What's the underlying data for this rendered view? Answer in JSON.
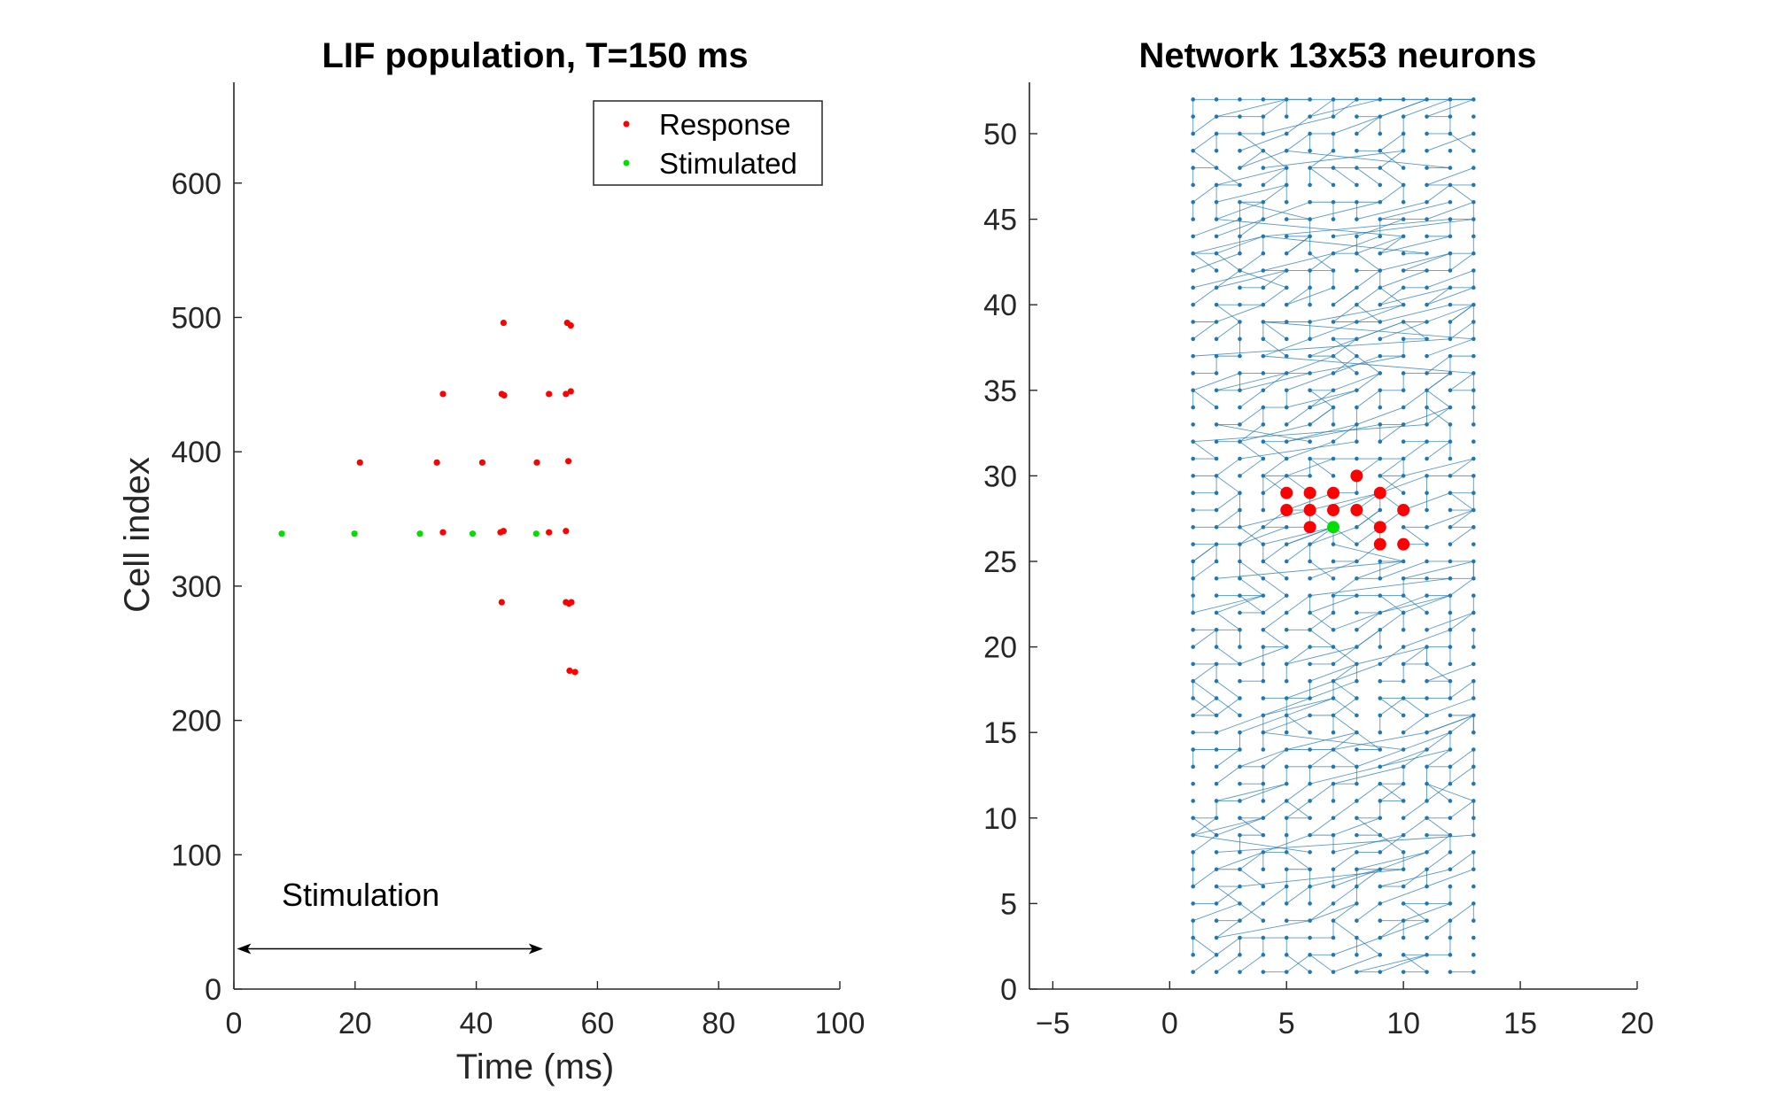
{
  "colors": {
    "response": "#ff0000",
    "stimulated": "#00e000",
    "network": "#1f77b4",
    "axis": "#262626"
  },
  "chart_data": [
    {
      "type": "scatter",
      "title": "LIF population, T=150 ms",
      "xlabel": "Time (ms)",
      "ylabel": "Cell index",
      "xlim": [
        0,
        100
      ],
      "ylim": [
        0,
        675
      ],
      "xticks": [
        0,
        20,
        40,
        60,
        80,
        100
      ],
      "yticks": [
        0,
        100,
        200,
        300,
        400,
        500,
        600
      ],
      "grid": false,
      "legend": {
        "placement": "top-right",
        "entries": [
          "Response",
          "Stimulated"
        ]
      },
      "series": [
        {
          "name": "Response",
          "color": "#ff0000",
          "points": [
            [
              44.5,
              496
            ],
            [
              55.0,
              496
            ],
            [
              55.6,
              494
            ],
            [
              34.5,
              443
            ],
            [
              44.2,
              443
            ],
            [
              44.6,
              442
            ],
            [
              52.0,
              443
            ],
            [
              54.8,
              443
            ],
            [
              55.6,
              445
            ],
            [
              20.8,
              392
            ],
            [
              33.5,
              392
            ],
            [
              41.0,
              392
            ],
            [
              50.0,
              392
            ],
            [
              55.2,
              393
            ],
            [
              34.5,
              340
            ],
            [
              44.0,
              340
            ],
            [
              44.5,
              341
            ],
            [
              52.0,
              340
            ],
            [
              54.8,
              341
            ],
            [
              44.2,
              288
            ],
            [
              54.8,
              288
            ],
            [
              55.3,
              287
            ],
            [
              55.7,
              288
            ],
            [
              55.4,
              237
            ],
            [
              56.3,
              236
            ]
          ]
        },
        {
          "name": "Stimulated",
          "color": "#00e000",
          "points": [
            [
              7.9,
              339
            ],
            [
              19.9,
              339
            ],
            [
              30.7,
              339
            ],
            [
              39.4,
              339
            ],
            [
              49.9,
              339
            ]
          ]
        }
      ],
      "annotations": [
        {
          "text": "Stimulation",
          "x": 23,
          "y": 68
        },
        {
          "type": "double-arrow",
          "x_from": 0.5,
          "x_to": 51,
          "y": 30
        }
      ]
    },
    {
      "type": "scatter",
      "title": "Network 13x53 neurons",
      "xlim": [
        -6,
        20
      ],
      "ylim": [
        0,
        53
      ],
      "xticks": [
        -5,
        0,
        5,
        10,
        15,
        20
      ],
      "yticks": [
        0,
        5,
        10,
        15,
        20,
        25,
        30,
        35,
        40,
        45,
        50
      ],
      "grid": false,
      "network": {
        "cols": 13,
        "rows": 53,
        "x_range": [
          1,
          13
        ],
        "y_range": [
          1,
          52
        ],
        "color": "#1f77b4"
      },
      "series": [
        {
          "name": "Response",
          "color": "#ff0000",
          "points": [
            [
              8,
              30
            ],
            [
              5,
              29
            ],
            [
              6,
              29
            ],
            [
              7,
              29
            ],
            [
              9,
              29
            ],
            [
              5,
              28
            ],
            [
              6,
              28
            ],
            [
              7,
              28
            ],
            [
              8,
              28
            ],
            [
              10,
              28
            ],
            [
              6,
              27
            ],
            [
              9,
              27
            ],
            [
              9,
              26
            ],
            [
              10,
              26
            ]
          ]
        },
        {
          "name": "Stimulated",
          "color": "#00e000",
          "points": [
            [
              7,
              27
            ]
          ]
        }
      ]
    }
  ]
}
